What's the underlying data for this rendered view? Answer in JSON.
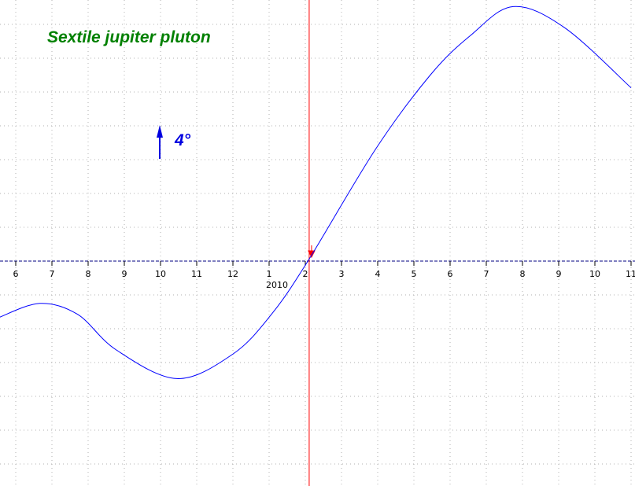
{
  "chart_data": {
    "type": "line",
    "title": "Sextile jupiter pluton",
    "scale_label": "4°",
    "scale_degrees": 4,
    "x_ticks": [
      {
        "date": "2009-06-01",
        "label": "6"
      },
      {
        "date": "2009-07-01",
        "label": "7"
      },
      {
        "date": "2009-08-01",
        "label": "8"
      },
      {
        "date": "2009-09-01",
        "label": "9"
      },
      {
        "date": "2009-10-01",
        "label": "10"
      },
      {
        "date": "2009-11-01",
        "label": "11"
      },
      {
        "date": "2009-12-01",
        "label": "12"
      },
      {
        "date": "2010-01-01",
        "label": "1"
      },
      {
        "date": "2010-02-01",
        "label": "2"
      },
      {
        "date": "2010-03-01",
        "label": "3"
      },
      {
        "date": "2010-04-01",
        "label": "4"
      },
      {
        "date": "2010-05-01",
        "label": "5"
      },
      {
        "date": "2010-06-01",
        "label": "6"
      },
      {
        "date": "2010-07-01",
        "label": "7"
      },
      {
        "date": "2010-08-01",
        "label": "8"
      },
      {
        "date": "2010-09-01",
        "label": "9"
      },
      {
        "date": "2010-10-01",
        "label": "10"
      },
      {
        "date": "2010-11-01",
        "label": "11"
      }
    ],
    "year_label": "2010",
    "current_date": "2010-02-04",
    "grid": true,
    "ylim_degrees": [
      -26,
      31
    ],
    "series": [
      {
        "color": "#0000ff",
        "points": [
          {
            "x": "2009-05-17",
            "y": -6.7
          },
          {
            "x": "2009-06-21",
            "y": -5.0
          },
          {
            "x": "2009-07-23",
            "y": -6.3
          },
          {
            "x": "2009-08-25",
            "y": -10.5
          },
          {
            "x": "2009-10-15",
            "y": -13.9
          },
          {
            "x": "2009-12-01",
            "y": -11.0
          },
          {
            "x": "2010-01-03",
            "y": -6.3
          },
          {
            "x": "2010-02-03",
            "y": 0
          },
          {
            "x": "2010-03-30",
            "y": 13.2
          },
          {
            "x": "2010-05-15",
            "y": 22.0
          },
          {
            "x": "2010-06-18",
            "y": 26.7
          },
          {
            "x": "2010-07-24",
            "y": 30.1
          },
          {
            "x": "2010-09-06",
            "y": 27.6
          },
          {
            "x": "2010-11-01",
            "y": 20.5
          }
        ]
      }
    ],
    "colors": {
      "axis": "#000080",
      "curve": "#0000ff",
      "current": "#ff0000",
      "title": "#008000",
      "scale": "#0000e0",
      "grid": "#b0b0b0"
    }
  }
}
